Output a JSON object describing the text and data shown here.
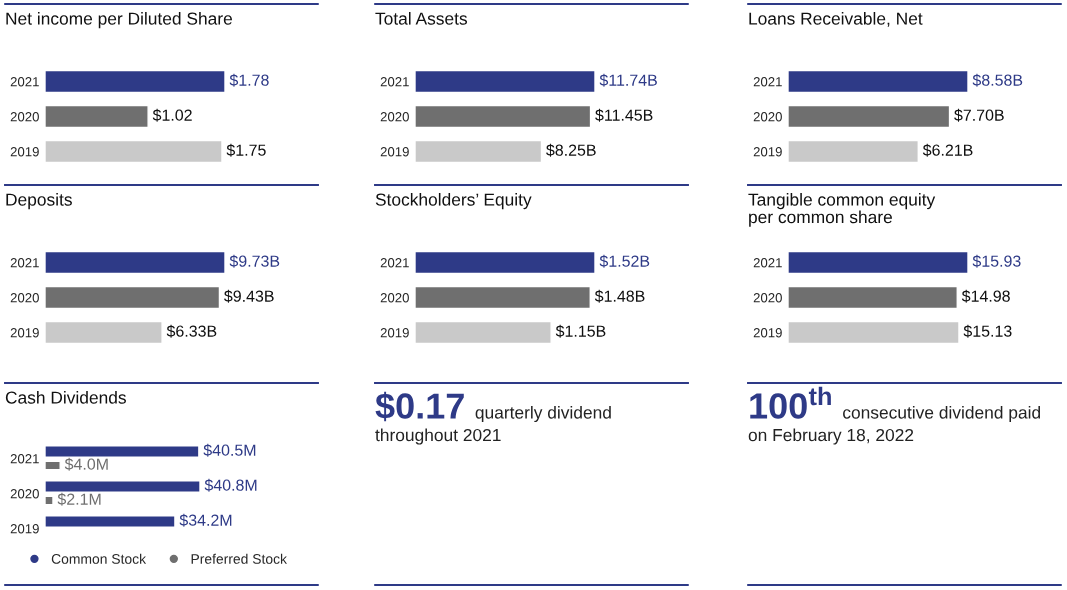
{
  "chart_data": [
    {
      "type": "bar",
      "orientation": "horizontal",
      "title": "Net income per Diluted Share",
      "categories": [
        "2021",
        "2020",
        "2019"
      ],
      "values": [
        1.78,
        1.02,
        1.75
      ],
      "colors": [
        "#2e3a87",
        "#6f6f6f",
        "#c9c9c9"
      ],
      "value_labels": [
        "$1.78",
        "$1.02",
        "$1.75"
      ]
    },
    {
      "type": "bar",
      "orientation": "horizontal",
      "title": "Total Assets",
      "categories": [
        "2021",
        "2020",
        "2019"
      ],
      "values": [
        11.74,
        11.45,
        8.25
      ],
      "colors": [
        "#2e3a87",
        "#6f6f6f",
        "#c9c9c9"
      ],
      "value_labels": [
        "$11.74B",
        "$11.45B",
        "$8.25B"
      ]
    },
    {
      "type": "bar",
      "orientation": "horizontal",
      "title": "Loans Receivable, Net",
      "categories": [
        "2021",
        "2020",
        "2019"
      ],
      "values": [
        8.58,
        7.7,
        6.21
      ],
      "colors": [
        "#2e3a87",
        "#6f6f6f",
        "#c9c9c9"
      ],
      "value_labels": [
        "$8.58B",
        "$7.70B",
        "$6.21B"
      ]
    },
    {
      "type": "bar",
      "orientation": "horizontal",
      "title": "Deposits",
      "categories": [
        "2021",
        "2020",
        "2019"
      ],
      "values": [
        9.73,
        9.43,
        6.33
      ],
      "colors": [
        "#2e3a87",
        "#6f6f6f",
        "#c9c9c9"
      ],
      "value_labels": [
        "$9.73B",
        "$9.43B",
        "$6.33B"
      ]
    },
    {
      "type": "bar",
      "orientation": "horizontal",
      "title": "Stockholders’ Equity",
      "categories": [
        "2021",
        "2020",
        "2019"
      ],
      "values": [
        1.52,
        1.48,
        1.15
      ],
      "colors": [
        "#2e3a87",
        "#6f6f6f",
        "#c9c9c9"
      ],
      "value_labels": [
        "$1.52B",
        "$1.48B",
        "$1.15B"
      ]
    },
    {
      "type": "bar",
      "orientation": "horizontal",
      "title": "Tangible common equity\nper common share",
      "categories": [
        "2021",
        "2020",
        "2019"
      ],
      "values": [
        15.93,
        14.98,
        15.13
      ],
      "colors": [
        "#2e3a87",
        "#6f6f6f",
        "#c9c9c9"
      ],
      "value_labels": [
        "$15.93",
        "$14.98",
        "$15.13"
      ]
    },
    {
      "type": "bar",
      "orientation": "horizontal",
      "title": "Cash Dividends",
      "categories": [
        "2021",
        "2020",
        "2019"
      ],
      "legend": "bottom",
      "series": [
        {
          "name": "Common Stock",
          "color": "#2e3a87",
          "values": [
            40.5,
            40.8,
            34.2
          ],
          "value_labels": [
            "$40.5M",
            "$40.8M",
            "$34.2M"
          ]
        },
        {
          "name": "Preferred Stock",
          "color": "#6f6f6f",
          "values": [
            4.0,
            2.1,
            null
          ],
          "value_labels": [
            "$4.0M",
            "$2.1M",
            null
          ]
        }
      ]
    },
    {
      "type": "other",
      "annotations": [
        "$0.17",
        "quarterly dividend",
        "throughout 2021"
      ]
    },
    {
      "type": "other",
      "annotations": [
        "100$^{th}$",
        "consecutive dividend paid",
        "on February 18, 2022"
      ]
    }
  ]
}
